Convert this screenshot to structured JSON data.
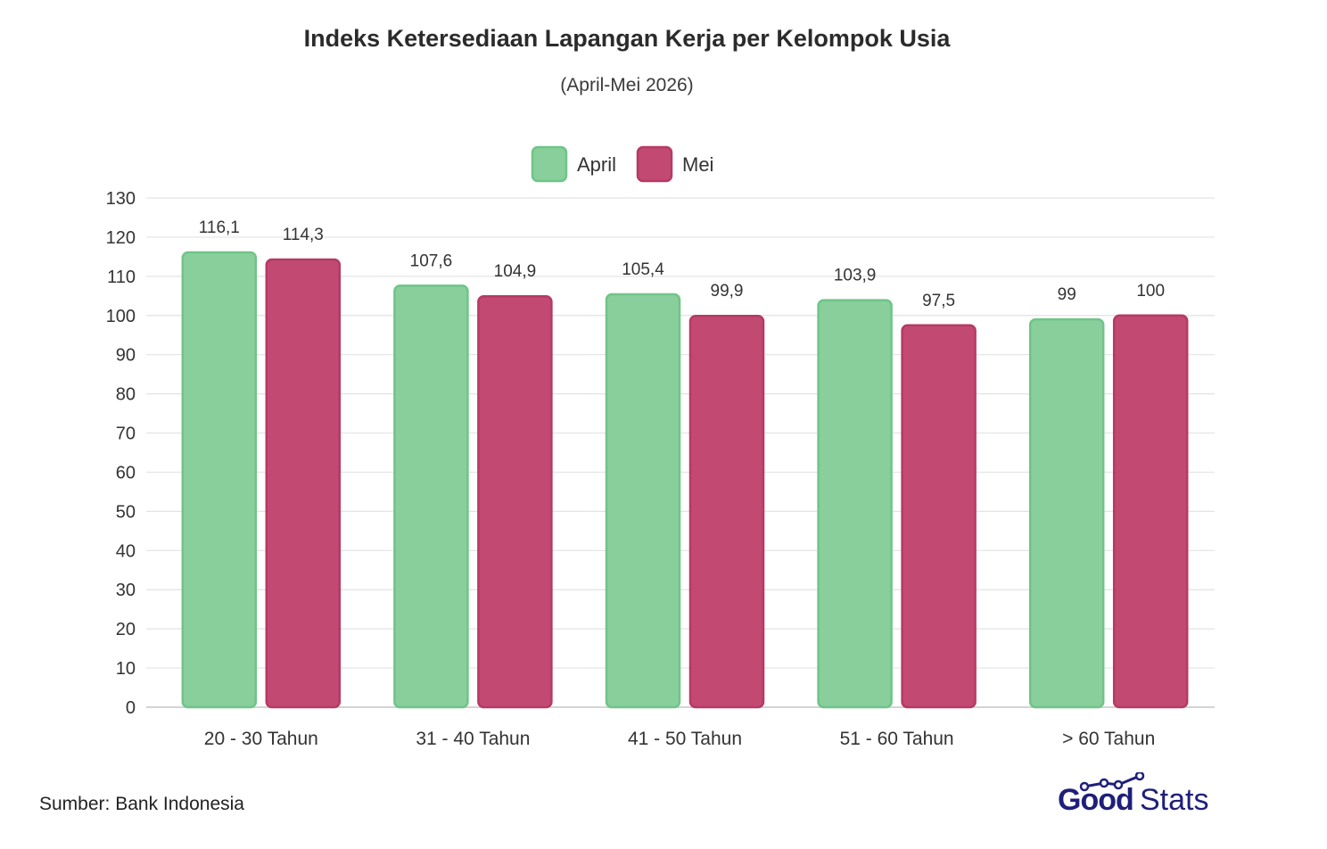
{
  "chart_data": {
    "type": "bar",
    "title": "Indeks Ketersediaan Lapangan Kerja per Kelompok Usia",
    "subtitle": "(April-Mei 2026)",
    "categories": [
      "20 - 30 Tahun",
      "31 - 40 Tahun",
      "41 - 50 Tahun",
      "51 - 60 Tahun",
      "> 60 Tahun"
    ],
    "series": [
      {
        "name": "April",
        "values": [
          116.1,
          107.6,
          105.4,
          103.9,
          99
        ],
        "labels": [
          "116,1",
          "107,6",
          "105,4",
          "103,9",
          "99"
        ],
        "color": "#88cf9b",
        "stroke": "#6fc488"
      },
      {
        "name": "Mei",
        "values": [
          114.3,
          104.9,
          99.9,
          97.5,
          100
        ],
        "labels": [
          "114,3",
          "104,9",
          "99,9",
          "97,5",
          "100"
        ],
        "color": "#c24a72",
        "stroke": "#b53a64"
      }
    ],
    "ylim": [
      0,
      130
    ],
    "yticks": [
      0,
      10,
      20,
      30,
      40,
      50,
      60,
      70,
      80,
      90,
      100,
      110,
      120,
      130
    ],
    "grid": true,
    "legend": "top-center"
  },
  "source": "Sumber: Bank Indonesia",
  "logo": {
    "part1": "Good",
    "part2": "Stats",
    "color": "#1f1f7a"
  }
}
